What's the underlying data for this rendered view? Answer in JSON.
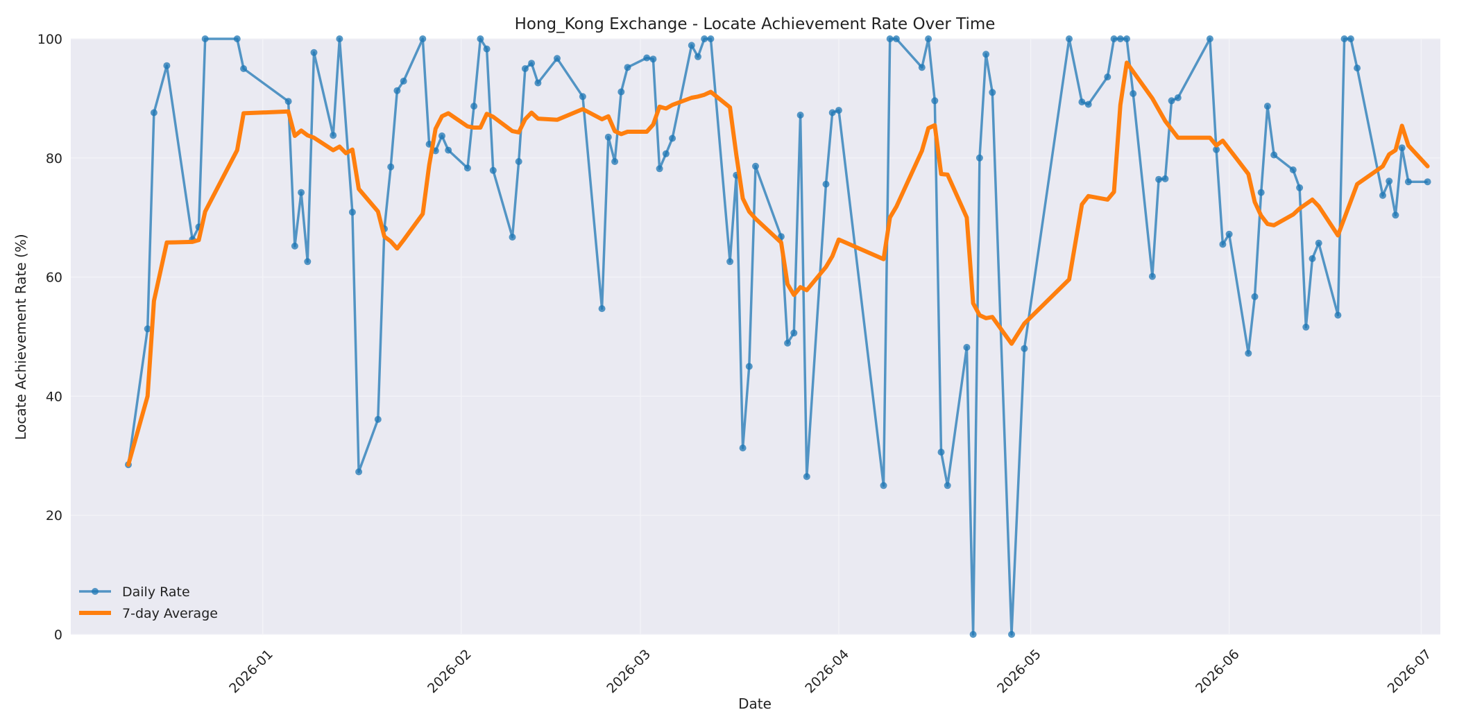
{
  "chart_data": {
    "type": "line",
    "title": "Hong_Kong Exchange - Locate Achievement Rate Over Time",
    "xlabel": "Date",
    "ylabel": "Locate Achievement Rate (%)",
    "xlim": [
      "2025-12-02",
      "2026-07-04"
    ],
    "ylim": [
      0,
      100
    ],
    "x_ticks": [
      "2026-01",
      "2026-02",
      "2026-03",
      "2026-04",
      "2026-05",
      "2026-06",
      "2026-07"
    ],
    "y_ticks": [
      0,
      20,
      40,
      60,
      80,
      100
    ],
    "grid": true,
    "legend_position": "lower-left",
    "colors": {
      "background": "#eaeaf2",
      "grid": "#f4f4f8",
      "daily": "#1f77b4",
      "average": "#ff7f0e"
    },
    "series": [
      {
        "name": "Daily Rate",
        "marker": "circle",
        "points": [
          [
            "2025-12-11",
            28.5
          ],
          [
            "2025-12-14",
            51.3
          ],
          [
            "2025-12-15",
            87.6
          ],
          [
            "2025-12-17",
            95.5
          ],
          [
            "2025-12-21",
            66.3
          ],
          [
            "2025-12-22",
            68.4
          ],
          [
            "2025-12-23",
            100
          ],
          [
            "2025-12-28",
            100
          ],
          [
            "2025-12-29",
            95.0
          ],
          [
            "2026-01-05",
            89.5
          ],
          [
            "2026-01-06",
            65.2
          ],
          [
            "2026-01-07",
            74.2
          ],
          [
            "2026-01-08",
            62.6
          ],
          [
            "2026-01-09",
            97.7
          ],
          [
            "2026-01-12",
            83.8
          ],
          [
            "2026-01-13",
            100
          ],
          [
            "2026-01-15",
            70.9
          ],
          [
            "2026-01-16",
            27.3
          ],
          [
            "2026-01-19",
            36.1
          ],
          [
            "2026-01-20",
            68.1
          ],
          [
            "2026-01-21",
            78.5
          ],
          [
            "2026-01-22",
            91.3
          ],
          [
            "2026-01-23",
            92.9
          ],
          [
            "2026-01-26",
            100
          ],
          [
            "2026-01-27",
            82.3
          ],
          [
            "2026-01-28",
            81.2
          ],
          [
            "2026-01-29",
            83.7
          ],
          [
            "2026-01-30",
            81.3
          ],
          [
            "2026-02-02",
            78.3
          ],
          [
            "2026-02-03",
            88.7
          ],
          [
            "2026-02-04",
            100
          ],
          [
            "2026-02-05",
            98.3
          ],
          [
            "2026-02-06",
            77.9
          ],
          [
            "2026-02-09",
            66.7
          ],
          [
            "2026-02-10",
            79.4
          ],
          [
            "2026-02-11",
            95.0
          ],
          [
            "2026-02-12",
            95.9
          ],
          [
            "2026-02-13",
            92.6
          ],
          [
            "2026-02-16",
            96.7
          ],
          [
            "2026-02-20",
            90.3
          ],
          [
            "2026-02-23",
            54.7
          ],
          [
            "2026-02-24",
            83.5
          ],
          [
            "2026-02-25",
            79.4
          ],
          [
            "2026-02-26",
            91.1
          ],
          [
            "2026-02-27",
            95.2
          ],
          [
            "2026-03-02",
            96.8
          ],
          [
            "2026-03-03",
            96.6
          ],
          [
            "2026-03-04",
            78.2
          ],
          [
            "2026-03-05",
            80.7
          ],
          [
            "2026-03-06",
            83.3
          ],
          [
            "2026-03-09",
            98.9
          ],
          [
            "2026-03-10",
            97.0
          ],
          [
            "2026-03-11",
            100
          ],
          [
            "2026-03-12",
            100
          ],
          [
            "2026-03-15",
            62.6
          ],
          [
            "2026-03-16",
            77.1
          ],
          [
            "2026-03-17",
            31.3
          ],
          [
            "2026-03-18",
            45.0
          ],
          [
            "2026-03-19",
            78.6
          ],
          [
            "2026-03-23",
            66.8
          ],
          [
            "2026-03-24",
            48.9
          ],
          [
            "2026-03-25",
            50.6
          ],
          [
            "2026-03-26",
            87.2
          ],
          [
            "2026-03-27",
            26.5
          ],
          [
            "2026-03-30",
            75.6
          ],
          [
            "2026-03-31",
            87.6
          ],
          [
            "2026-04-01",
            88.0
          ],
          [
            "2026-04-08",
            25.0
          ],
          [
            "2026-04-09",
            100
          ],
          [
            "2026-04-10",
            100
          ],
          [
            "2026-04-14",
            95.2
          ],
          [
            "2026-04-15",
            100
          ],
          [
            "2026-04-16",
            89.6
          ],
          [
            "2026-04-17",
            30.6
          ],
          [
            "2026-04-18",
            25.0
          ],
          [
            "2026-04-21",
            48.2
          ],
          [
            "2026-04-22",
            0.0
          ],
          [
            "2026-04-23",
            80.0
          ],
          [
            "2026-04-24",
            97.4
          ],
          [
            "2026-04-25",
            91.0
          ],
          [
            "2026-04-28",
            0.0
          ],
          [
            "2026-04-30",
            48.0
          ],
          [
            "2026-05-07",
            100
          ],
          [
            "2026-05-09",
            89.4
          ],
          [
            "2026-05-10",
            89.0
          ],
          [
            "2026-05-13",
            93.6
          ],
          [
            "2026-05-14",
            100
          ],
          [
            "2026-05-15",
            100
          ],
          [
            "2026-05-16",
            100
          ],
          [
            "2026-05-17",
            90.8
          ],
          [
            "2026-05-20",
            60.1
          ],
          [
            "2026-05-21",
            76.4
          ],
          [
            "2026-05-22",
            76.5
          ],
          [
            "2026-05-23",
            89.6
          ],
          [
            "2026-05-24",
            90.1
          ],
          [
            "2026-05-29",
            100
          ],
          [
            "2026-05-30",
            81.4
          ],
          [
            "2026-05-31",
            65.5
          ],
          [
            "2026-06-01",
            67.2
          ],
          [
            "2026-06-04",
            47.2
          ],
          [
            "2026-06-05",
            56.7
          ],
          [
            "2026-06-06",
            74.2
          ],
          [
            "2026-06-07",
            88.7
          ],
          [
            "2026-06-08",
            80.5
          ],
          [
            "2026-06-11",
            78.0
          ],
          [
            "2026-06-12",
            75.0
          ],
          [
            "2026-06-13",
            51.6
          ],
          [
            "2026-06-14",
            63.1
          ],
          [
            "2026-06-15",
            65.7
          ],
          [
            "2026-06-18",
            53.6
          ],
          [
            "2026-06-19",
            100
          ],
          [
            "2026-06-20",
            100
          ],
          [
            "2026-06-21",
            95.1
          ],
          [
            "2026-06-25",
            73.7
          ],
          [
            "2026-06-26",
            76.1
          ],
          [
            "2026-06-27",
            70.4
          ],
          [
            "2026-06-28",
            81.7
          ],
          [
            "2026-06-29",
            76.0
          ],
          [
            "2026-07-02",
            76.0
          ]
        ]
      },
      {
        "name": "7-day Average",
        "points": [
          [
            "2025-12-11",
            28.5
          ],
          [
            "2025-12-14",
            40.0
          ],
          [
            "2025-12-15",
            56.0
          ],
          [
            "2025-12-17",
            65.8
          ],
          [
            "2025-12-21",
            65.9
          ],
          [
            "2025-12-22",
            66.2
          ],
          [
            "2025-12-23",
            71.0
          ],
          [
            "2025-12-28",
            81.3
          ],
          [
            "2025-12-29",
            87.5
          ],
          [
            "2026-01-05",
            87.8
          ],
          [
            "2026-01-06",
            83.7
          ],
          [
            "2026-01-07",
            84.6
          ],
          [
            "2026-01-08",
            83.8
          ],
          [
            "2026-01-09",
            83.4
          ],
          [
            "2026-01-12",
            81.3
          ],
          [
            "2026-01-13",
            81.9
          ],
          [
            "2026-01-14",
            80.8
          ],
          [
            "2026-01-15",
            81.4
          ],
          [
            "2026-01-16",
            74.8
          ],
          [
            "2026-01-19",
            71.0
          ],
          [
            "2026-01-20",
            66.8
          ],
          [
            "2026-01-21",
            66.0
          ],
          [
            "2026-01-22",
            64.8
          ],
          [
            "2026-01-23",
            66.2
          ],
          [
            "2026-01-26",
            70.6
          ],
          [
            "2026-01-27",
            78.8
          ],
          [
            "2026-01-28",
            84.9
          ],
          [
            "2026-01-29",
            87.0
          ],
          [
            "2026-01-30",
            87.5
          ],
          [
            "2026-02-02",
            85.3
          ],
          [
            "2026-02-03",
            85.1
          ],
          [
            "2026-02-04",
            85.1
          ],
          [
            "2026-02-05",
            87.4
          ],
          [
            "2026-02-06",
            86.9
          ],
          [
            "2026-02-09",
            84.5
          ],
          [
            "2026-02-10",
            84.3
          ],
          [
            "2026-02-11",
            86.5
          ],
          [
            "2026-02-12",
            87.6
          ],
          [
            "2026-02-13",
            86.6
          ],
          [
            "2026-02-16",
            86.4
          ],
          [
            "2026-02-20",
            88.2
          ],
          [
            "2026-02-23",
            86.5
          ],
          [
            "2026-02-24",
            87.0
          ],
          [
            "2026-02-25",
            84.5
          ],
          [
            "2026-02-26",
            84.0
          ],
          [
            "2026-02-27",
            84.4
          ],
          [
            "2026-03-02",
            84.4
          ],
          [
            "2026-03-03",
            85.6
          ],
          [
            "2026-03-04",
            88.6
          ],
          [
            "2026-03-05",
            88.3
          ],
          [
            "2026-03-06",
            88.9
          ],
          [
            "2026-03-09",
            90.1
          ],
          [
            "2026-03-10",
            90.3
          ],
          [
            "2026-03-11",
            90.6
          ],
          [
            "2026-03-12",
            91.1
          ],
          [
            "2026-03-15",
            88.5
          ],
          [
            "2026-03-16",
            80.5
          ],
          [
            "2026-03-17",
            73.2
          ],
          [
            "2026-03-18",
            71.0
          ],
          [
            "2026-03-19",
            69.8
          ],
          [
            "2026-03-23",
            65.8
          ],
          [
            "2026-03-24",
            58.8
          ],
          [
            "2026-03-25",
            57.0
          ],
          [
            "2026-03-26",
            58.3
          ],
          [
            "2026-03-27",
            57.8
          ],
          [
            "2026-03-30",
            61.7
          ],
          [
            "2026-03-31",
            63.5
          ],
          [
            "2026-04-01",
            66.3
          ],
          [
            "2026-04-08",
            63.0
          ],
          [
            "2026-04-09",
            70.0
          ],
          [
            "2026-04-10",
            71.8
          ],
          [
            "2026-04-14",
            81.2
          ],
          [
            "2026-04-15",
            85.0
          ],
          [
            "2026-04-16",
            85.5
          ],
          [
            "2026-04-17",
            77.3
          ],
          [
            "2026-04-18",
            77.2
          ],
          [
            "2026-04-21",
            70.0
          ],
          [
            "2026-04-22",
            55.6
          ],
          [
            "2026-04-23",
            53.6
          ],
          [
            "2026-04-24",
            53.1
          ],
          [
            "2026-04-25",
            53.3
          ],
          [
            "2026-04-28",
            48.8
          ],
          [
            "2026-04-30",
            52.2
          ],
          [
            "2026-05-07",
            59.6
          ],
          [
            "2026-05-09",
            72.2
          ],
          [
            "2026-05-10",
            73.6
          ],
          [
            "2026-05-13",
            73.0
          ],
          [
            "2026-05-14",
            74.3
          ],
          [
            "2026-05-15",
            88.9
          ],
          [
            "2026-05-16",
            96.0
          ],
          [
            "2026-05-20",
            90.0
          ],
          [
            "2026-05-22",
            86.2
          ],
          [
            "2026-05-24",
            83.4
          ],
          [
            "2026-05-29",
            83.4
          ],
          [
            "2026-05-30",
            82.1
          ],
          [
            "2026-05-31",
            82.9
          ],
          [
            "2026-06-04",
            77.3
          ],
          [
            "2026-06-05",
            72.6
          ],
          [
            "2026-06-06",
            70.3
          ],
          [
            "2026-06-07",
            68.9
          ],
          [
            "2026-06-08",
            68.7
          ],
          [
            "2026-06-11",
            70.5
          ],
          [
            "2026-06-12",
            71.5
          ],
          [
            "2026-06-14",
            73.0
          ],
          [
            "2026-06-15",
            71.9
          ],
          [
            "2026-06-18",
            67.0
          ],
          [
            "2026-06-21",
            75.6
          ],
          [
            "2026-06-25",
            78.6
          ],
          [
            "2026-06-26",
            80.6
          ],
          [
            "2026-06-27",
            81.3
          ],
          [
            "2026-06-28",
            85.4
          ],
          [
            "2026-06-29",
            82.1
          ],
          [
            "2026-07-02",
            78.6
          ]
        ]
      }
    ]
  }
}
